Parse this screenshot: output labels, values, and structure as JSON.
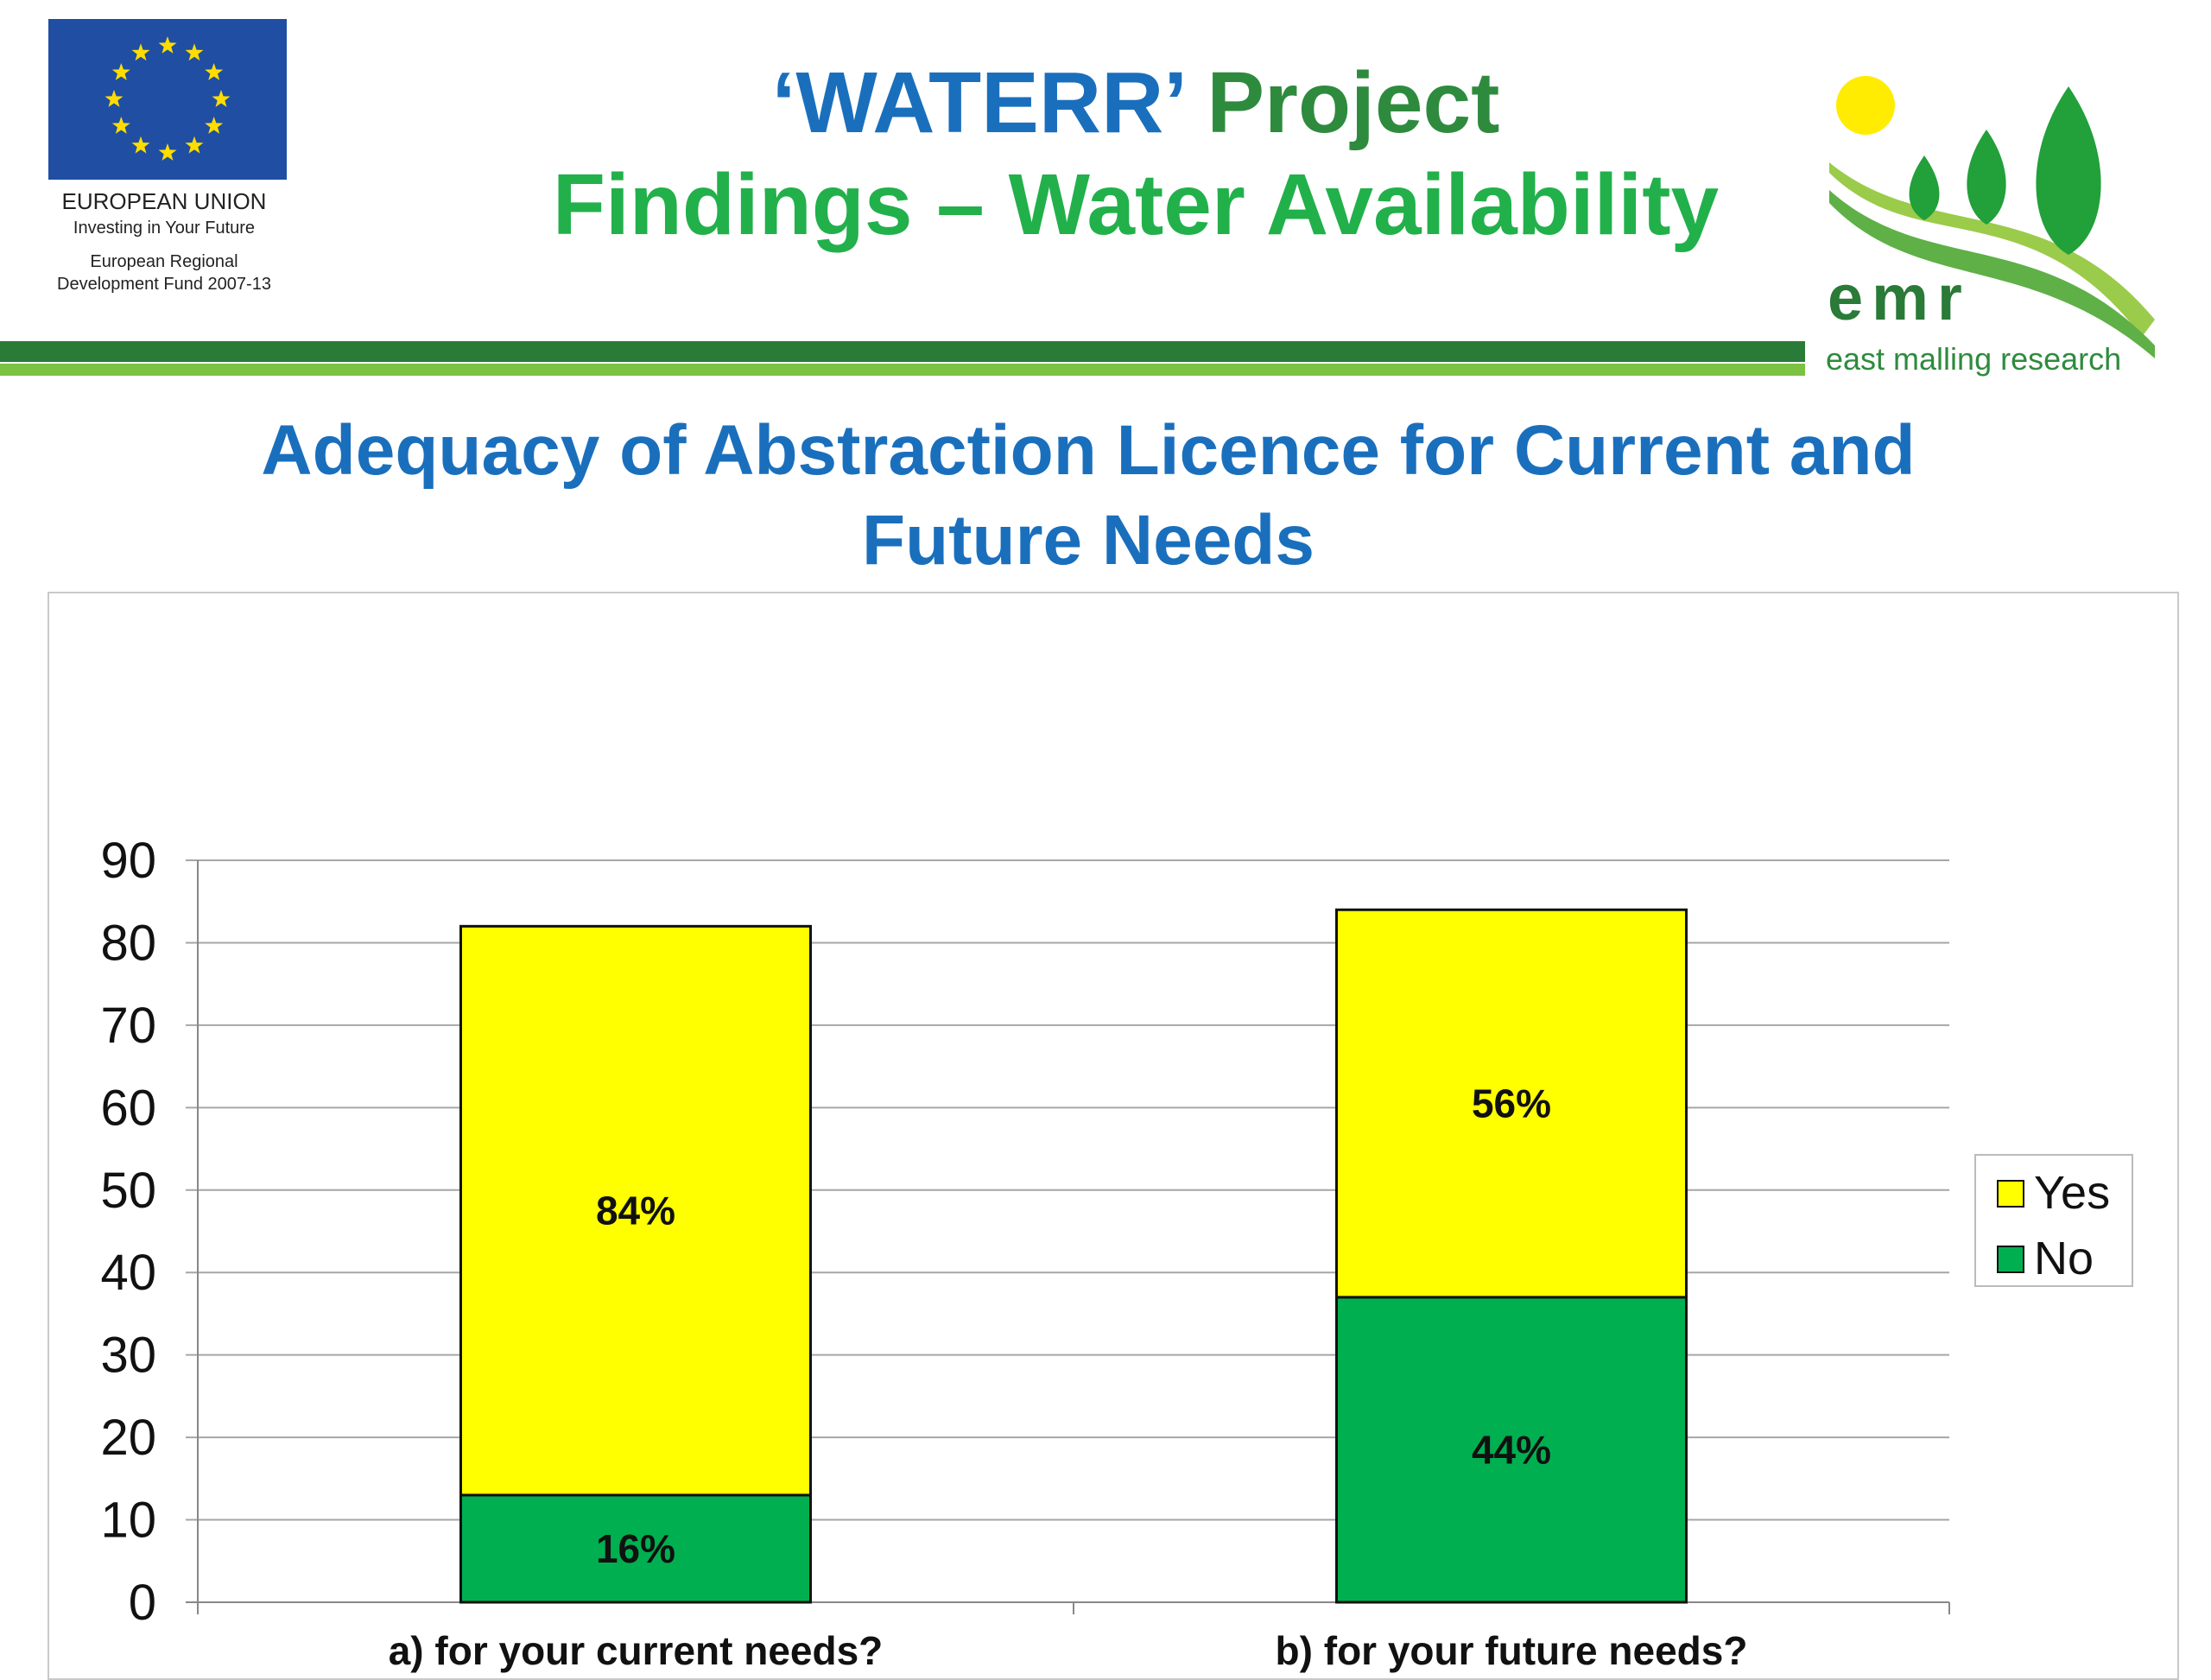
{
  "header": {
    "title_part1": "‘WATERR’",
    "title_part2": "Project",
    "subtitle": "Findings – Water Availability"
  },
  "eu_logo": {
    "line1": "EUROPEAN UNION",
    "line2": "Investing in Your Future",
    "line3": "European Regional",
    "line4": "Development Fund 2007-13",
    "flag_color": "#1f4ea3",
    "star_color": "#ffdd00"
  },
  "emr_logo": {
    "wordmark": "emr",
    "tagline": "east malling research",
    "sun_color": "#ffec00",
    "leaf_color": "#22a03a"
  },
  "slide_title_line1": "Adequacy of Abstraction Licence for Current  and",
  "slide_title_line2": "Future Needs",
  "chart_data": {
    "type": "bar",
    "stacked": true,
    "categories": [
      "a) for your current needs?",
      "b) for your future needs?"
    ],
    "series": [
      {
        "name": "No",
        "values": [
          13,
          37
        ],
        "labels": [
          "16%",
          "44%"
        ],
        "color": "#00b050"
      },
      {
        "name": "Yes",
        "values": [
          69,
          47
        ],
        "labels": [
          "84%",
          "56%"
        ],
        "color": "#ffff00"
      }
    ],
    "y_ticks": [
      "0",
      "10",
      "20",
      "30",
      "40",
      "50",
      "60",
      "70",
      "80",
      "90"
    ],
    "ylim": [
      0,
      90
    ],
    "grid": true,
    "legend": {
      "position": "right",
      "entries": [
        "Yes",
        "No"
      ]
    }
  }
}
